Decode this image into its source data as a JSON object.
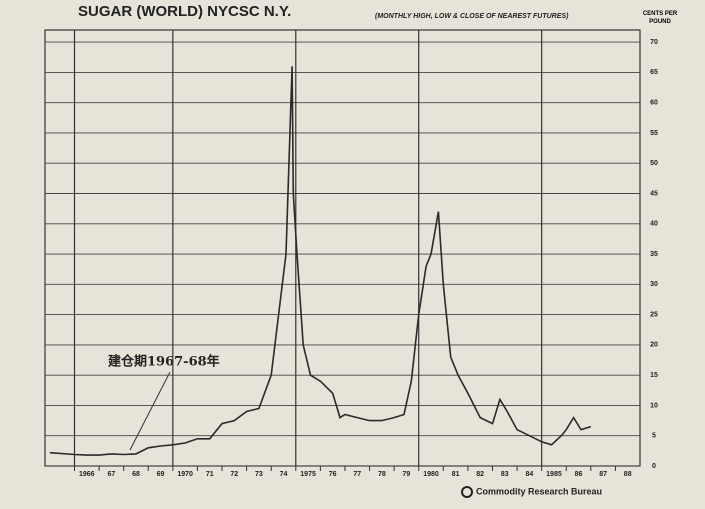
{
  "chart_data": {
    "type": "line",
    "title": "SUGAR (WORLD)   NYCSC   N.Y.",
    "subtitle": "(MONTHLY HIGH, LOW & CLOSE OF NEAREST FUTURES)",
    "y_label": "CENTS PER POUND",
    "annotation": "建仓期1967-68年",
    "source": "Commodity Research Bureau",
    "color": "#2a2a2a",
    "grid": true,
    "xlim": [
      1964.8,
      1989
    ],
    "ylim": [
      0,
      72
    ],
    "yticks": [
      0,
      5,
      10,
      15,
      20,
      25,
      30,
      35,
      40,
      45,
      50,
      55,
      60,
      65,
      70
    ],
    "xticks": [
      1966,
      {
        "value": 1967,
        "label": "67"
      },
      {
        "value": 1968,
        "label": "68"
      },
      {
        "value": 1969,
        "label": "69"
      },
      1970,
      {
        "value": 1971,
        "label": "71"
      },
      {
        "value": 1972,
        "label": "72"
      },
      {
        "value": 1973,
        "label": "73"
      },
      {
        "value": 1974,
        "label": "74"
      },
      1975,
      {
        "value": 1976,
        "label": "76"
      },
      {
        "value": 1977,
        "label": "77"
      },
      {
        "value": 1978,
        "label": "78"
      },
      {
        "value": 1979,
        "label": "79"
      },
      1980,
      {
        "value": 1981,
        "label": "81"
      },
      {
        "value": 1982,
        "label": "82"
      },
      {
        "value": 1983,
        "label": "83"
      },
      {
        "value": 1984,
        "label": "84"
      },
      1985,
      {
        "value": 1986,
        "label": "86"
      },
      {
        "value": 1987,
        "label": "87"
      },
      {
        "value": 1988,
        "label": "88"
      }
    ],
    "x": [
      1965.0,
      1966.0,
      1966.5,
      1967.0,
      1967.5,
      1968.0,
      1968.5,
      1969.0,
      1969.5,
      1970.0,
      1970.5,
      1971.0,
      1971.5,
      1972.0,
      1972.5,
      1973.0,
      1973.5,
      1974.0,
      1974.3,
      1974.6,
      1974.85,
      1974.9,
      1975.05,
      1975.3,
      1975.6,
      1976.0,
      1976.5,
      1976.8,
      1977.0,
      1977.5,
      1978.0,
      1978.5,
      1979.0,
      1979.4,
      1979.7,
      1980.0,
      1980.3,
      1980.5,
      1980.8,
      1981.0,
      1981.3,
      1981.6,
      1982.0,
      1982.5,
      1983.0,
      1983.3,
      1983.6,
      1984.0,
      1984.5,
      1985.0,
      1985.4,
      1985.8,
      1986.0,
      1986.3,
      1986.6,
      1987.0
    ],
    "values": [
      2.2,
      1.9,
      1.8,
      1.8,
      2.0,
      1.9,
      2.0,
      3.0,
      3.3,
      3.5,
      3.8,
      4.5,
      4.5,
      7,
      7.5,
      9,
      9.5,
      15,
      25,
      35,
      66,
      45,
      35,
      20,
      15,
      14,
      12,
      8,
      8.5,
      8,
      7.5,
      7.5,
      8,
      8.5,
      14,
      25,
      33,
      35,
      42,
      30,
      18,
      15,
      12,
      8,
      7,
      11,
      9,
      6,
      5,
      4,
      3.5,
      5,
      6,
      8,
      6,
      6.5
    ]
  }
}
